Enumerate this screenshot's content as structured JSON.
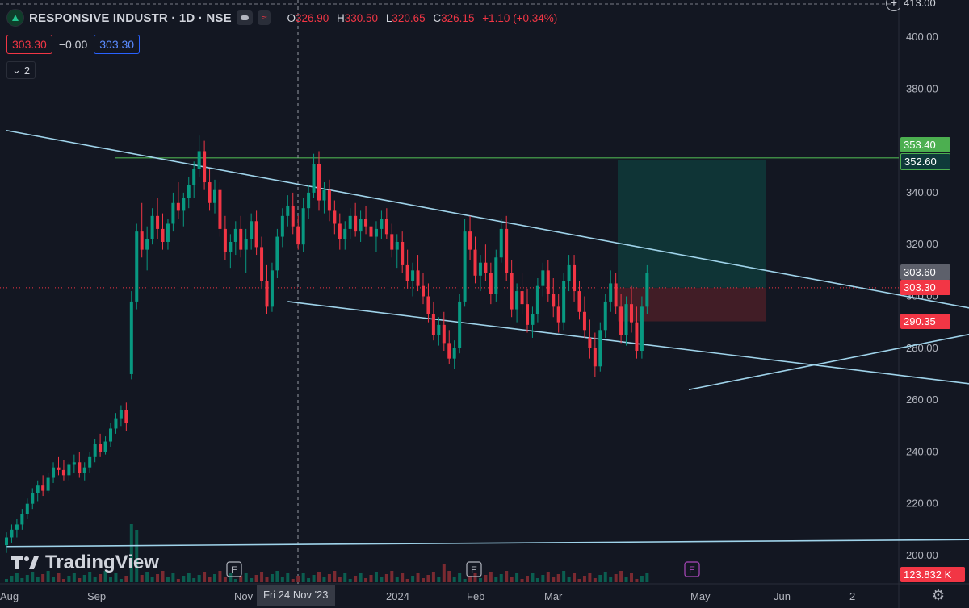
{
  "header": {
    "symbol_title": "RESPONSIVE INDUSTR · 1D · NSE",
    "ohlc": [
      {
        "k": "O",
        "v": "326.90"
      },
      {
        "k": "H",
        "v": "330.50"
      },
      {
        "k": "L",
        "v": "320.65"
      },
      {
        "k": "C",
        "v": "326.15"
      }
    ],
    "change": "+1.10 (+0.34%)",
    "bid": "303.30",
    "spread": "−0.00",
    "ask": "303.30",
    "indicator_count": "2"
  },
  "axis_tags": {
    "top_cut": "413.00",
    "tag_353": "353.40",
    "tag_352": "352.60",
    "tag_303_6": "303.60",
    "tag_303_3": "303.30",
    "tag_290": "290.35",
    "volume": "123.832 K"
  },
  "cursor_date": "Fri 24 Nov '23",
  "branding": "TradingView",
  "colors": {
    "up": "#089981",
    "down": "#f23645",
    "trendline": "#9fd3ea",
    "horizontal": "#4caf50",
    "target_zone": "#0f3a3a",
    "stop_zone": "#4a1f27",
    "background": "#131722"
  },
  "chart_data": {
    "type": "candlestick",
    "price_axis": {
      "min": 200,
      "max": 413,
      "ticks": [
        200,
        220,
        240,
        260,
        280,
        300,
        320,
        340,
        380,
        400
      ]
    },
    "time_axis_labels": [
      "Aug",
      "Sep",
      "Nov",
      "2024",
      "Feb",
      "Mar",
      "May",
      "Jun",
      "2"
    ],
    "earnings_markers": [
      "E",
      "E",
      "E"
    ],
    "horizontal_level": 353.4,
    "trendlines": [
      {
        "name": "upper falling",
        "from": [
          0,
          364
        ],
        "to": [
          216,
          284
        ]
      },
      {
        "name": "lower falling",
        "from": [
          54,
          298
        ],
        "to": [
          215,
          259
        ]
      },
      {
        "name": "rising support",
        "from": [
          131,
          264
        ],
        "to": [
          237,
          306
        ]
      },
      {
        "name": "long-term base",
        "from": [
          0,
          203.5
        ],
        "to": [
          245,
          207
        ]
      }
    ],
    "position": {
      "entry": 303.3,
      "target": 352.6,
      "stop": 290.35
    },
    "last_price": 303.3,
    "candles_ohlc": [
      [
        204,
        209,
        201,
        207
      ],
      [
        207,
        212,
        205,
        210
      ],
      [
        210,
        214,
        207,
        212
      ],
      [
        212,
        218,
        210,
        216
      ],
      [
        216,
        222,
        214,
        220
      ],
      [
        220,
        226,
        218,
        224
      ],
      [
        224,
        229,
        221,
        227
      ],
      [
        227,
        231,
        223,
        225
      ],
      [
        225,
        232,
        224,
        230
      ],
      [
        230,
        236,
        228,
        234
      ],
      [
        234,
        238,
        231,
        233
      ],
      [
        233,
        237,
        229,
        231
      ],
      [
        231,
        236,
        229,
        235
      ],
      [
        235,
        239,
        232,
        236
      ],
      [
        236,
        240,
        230,
        232
      ],
      [
        232,
        236,
        229,
        234
      ],
      [
        234,
        240,
        232,
        238
      ],
      [
        238,
        245,
        236,
        243
      ],
      [
        243,
        247,
        238,
        240
      ],
      [
        240,
        246,
        239,
        244
      ],
      [
        244,
        251,
        242,
        249
      ],
      [
        249,
        255,
        247,
        253
      ],
      [
        253,
        258,
        250,
        256
      ],
      [
        256,
        259,
        248,
        251
      ],
      [
        270,
        302,
        268,
        298
      ],
      [
        298,
        328,
        295,
        325
      ],
      [
        325,
        336,
        315,
        318
      ],
      [
        318,
        327,
        310,
        322
      ],
      [
        322,
        334,
        320,
        331
      ],
      [
        331,
        338,
        322,
        326
      ],
      [
        326,
        332,
        318,
        321
      ],
      [
        321,
        330,
        318,
        328
      ],
      [
        328,
        340,
        325,
        336
      ],
      [
        336,
        344,
        330,
        333
      ],
      [
        333,
        340,
        327,
        338
      ],
      [
        338,
        346,
        334,
        343
      ],
      [
        343,
        352,
        338,
        349
      ],
      [
        349,
        362,
        346,
        356
      ],
      [
        356,
        360,
        341,
        344
      ],
      [
        344,
        349,
        333,
        336
      ],
      [
        336,
        345,
        332,
        341
      ],
      [
        341,
        344,
        323,
        326
      ],
      [
        326,
        331,
        314,
        317
      ],
      [
        317,
        324,
        311,
        321
      ],
      [
        321,
        329,
        316,
        326
      ],
      [
        326,
        331,
        315,
        318
      ],
      [
        318,
        326,
        309,
        322
      ],
      [
        322,
        332,
        318,
        329
      ],
      [
        329,
        333,
        316,
        319
      ],
      [
        319,
        323,
        303,
        306
      ],
      [
        306,
        312,
        293,
        296
      ],
      [
        296,
        313,
        294,
        310
      ],
      [
        310,
        326,
        307,
        323
      ],
      [
        323,
        334,
        319,
        331
      ],
      [
        331,
        339,
        327,
        335
      ],
      [
        335,
        340,
        324,
        327
      ],
      [
        327,
        331,
        318,
        320
      ],
      [
        320,
        338,
        317,
        334
      ],
      [
        334,
        343,
        330,
        340
      ],
      [
        340,
        355,
        338,
        351
      ],
      [
        351,
        356,
        333,
        337
      ],
      [
        337,
        344,
        332,
        341
      ],
      [
        341,
        345,
        329,
        333
      ],
      [
        333,
        337,
        324,
        328
      ],
      [
        328,
        332,
        318,
        322
      ],
      [
        322,
        329,
        318,
        326
      ],
      [
        326,
        334,
        322,
        331
      ],
      [
        331,
        336,
        323,
        325
      ],
      [
        325,
        333,
        321,
        330
      ],
      [
        330,
        335,
        324,
        327
      ],
      [
        327,
        332,
        320,
        323
      ],
      [
        323,
        329,
        317,
        326
      ],
      [
        326,
        333,
        322,
        330
      ],
      [
        330,
        334,
        322,
        324
      ],
      [
        324,
        328,
        315,
        318
      ],
      [
        318,
        324,
        311,
        321
      ],
      [
        321,
        325,
        309,
        312
      ],
      [
        312,
        318,
        303,
        306
      ],
      [
        306,
        313,
        300,
        310
      ],
      [
        310,
        316,
        302,
        304
      ],
      [
        304,
        309,
        297,
        300
      ],
      [
        300,
        305,
        290,
        293
      ],
      [
        293,
        298,
        283,
        285
      ],
      [
        285,
        292,
        281,
        289
      ],
      [
        289,
        294,
        279,
        282
      ],
      [
        282,
        287,
        274,
        276
      ],
      [
        276,
        283,
        272,
        280
      ],
      [
        280,
        301,
        278,
        298
      ],
      [
        298,
        330,
        296,
        325
      ],
      [
        325,
        331,
        314,
        318
      ],
      [
        318,
        323,
        305,
        308
      ],
      [
        308,
        316,
        302,
        313
      ],
      [
        313,
        320,
        306,
        309
      ],
      [
        309,
        313,
        297,
        301
      ],
      [
        301,
        318,
        298,
        315
      ],
      [
        315,
        330,
        313,
        326
      ],
      [
        326,
        331,
        306,
        309
      ],
      [
        309,
        314,
        292,
        295
      ],
      [
        295,
        305,
        290,
        302
      ],
      [
        302,
        309,
        293,
        297
      ],
      [
        297,
        303,
        286,
        289
      ],
      [
        289,
        296,
        284,
        293
      ],
      [
        293,
        307,
        290,
        304
      ],
      [
        304,
        313,
        300,
        310
      ],
      [
        310,
        314,
        298,
        301
      ],
      [
        301,
        307,
        292,
        296
      ],
      [
        296,
        301,
        286,
        290
      ],
      [
        290,
        309,
        287,
        306
      ],
      [
        306,
        316,
        302,
        312
      ],
      [
        312,
        316,
        298,
        302
      ],
      [
        302,
        306,
        291,
        294
      ],
      [
        294,
        300,
        284,
        287
      ],
      [
        284,
        291,
        276,
        280
      ],
      [
        280,
        286,
        269,
        273
      ],
      [
        273,
        290,
        271,
        287
      ],
      [
        287,
        301,
        284,
        298
      ],
      [
        298,
        310,
        294,
        305
      ],
      [
        305,
        309,
        293,
        296
      ],
      [
        296,
        301,
        282,
        285
      ],
      [
        285,
        300,
        281,
        297
      ],
      [
        297,
        304,
        286,
        290
      ],
      [
        290,
        296,
        276,
        279
      ],
      [
        279,
        300,
        276,
        296
      ],
      [
        296,
        312,
        293,
        309
      ]
    ]
  }
}
